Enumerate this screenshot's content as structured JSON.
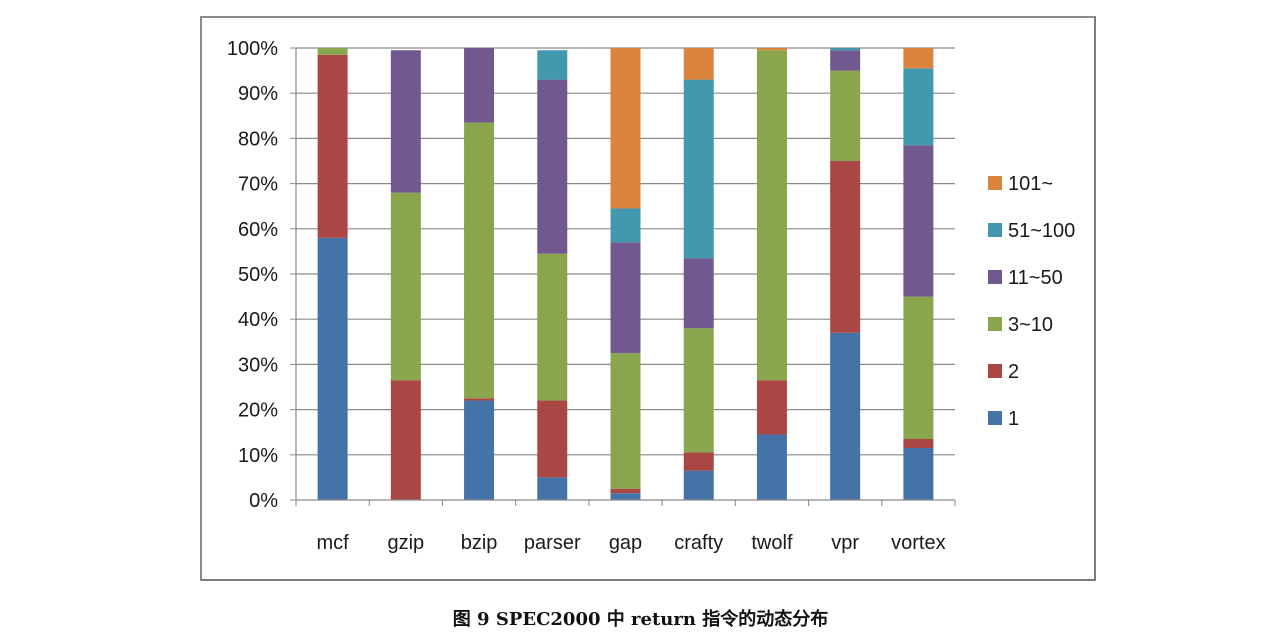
{
  "chart_data": {
    "type": "bar",
    "stacked": true,
    "percent_stacked": true,
    "categories": [
      "mcf",
      "gzip",
      "bzip",
      "parser",
      "gap",
      "crafty",
      "twolf",
      "vpr",
      "vortex"
    ],
    "series": [
      {
        "name": "1",
        "color": "#4572a7",
        "values": [
          58,
          0,
          22,
          5,
          1.5,
          6.5,
          14.5,
          37,
          11.5
        ]
      },
      {
        "name": "2",
        "color": "#aa4643",
        "values": [
          40.5,
          26.5,
          0.5,
          17,
          1,
          4,
          12,
          38,
          2
        ]
      },
      {
        "name": "3~10",
        "color": "#89a54e",
        "values": [
          1.5,
          41.5,
          61,
          32.5,
          30,
          27.5,
          73,
          20,
          31.5
        ]
      },
      {
        "name": "11~50",
        "color": "#71588f",
        "values": [
          0,
          31.5,
          16.5,
          38.5,
          24.5,
          15.5,
          0,
          4.5,
          33.5
        ]
      },
      {
        "name": "51~100",
        "color": "#4198af",
        "values": [
          0,
          0,
          0,
          6.5,
          7.5,
          39.5,
          0,
          0.5,
          17
        ]
      },
      {
        "name": "101~",
        "color": "#db843d",
        "values": [
          0,
          0,
          0,
          0,
          35.5,
          7,
          0.5,
          0,
          4.5
        ]
      }
    ],
    "ylim": [
      0,
      100
    ],
    "yticks": [
      "0%",
      "10%",
      "20%",
      "30%",
      "40%",
      "50%",
      "60%",
      "70%",
      "80%",
      "90%",
      "100%"
    ],
    "legend_order": [
      "101~",
      "51~100",
      "11~50",
      "3~10",
      "2",
      "1"
    ],
    "legend_position": "right",
    "grid": true,
    "title": "",
    "xlabel": "",
    "ylabel": ""
  },
  "caption": "图 9 SPEC2000 中 return 指令的动态分布"
}
